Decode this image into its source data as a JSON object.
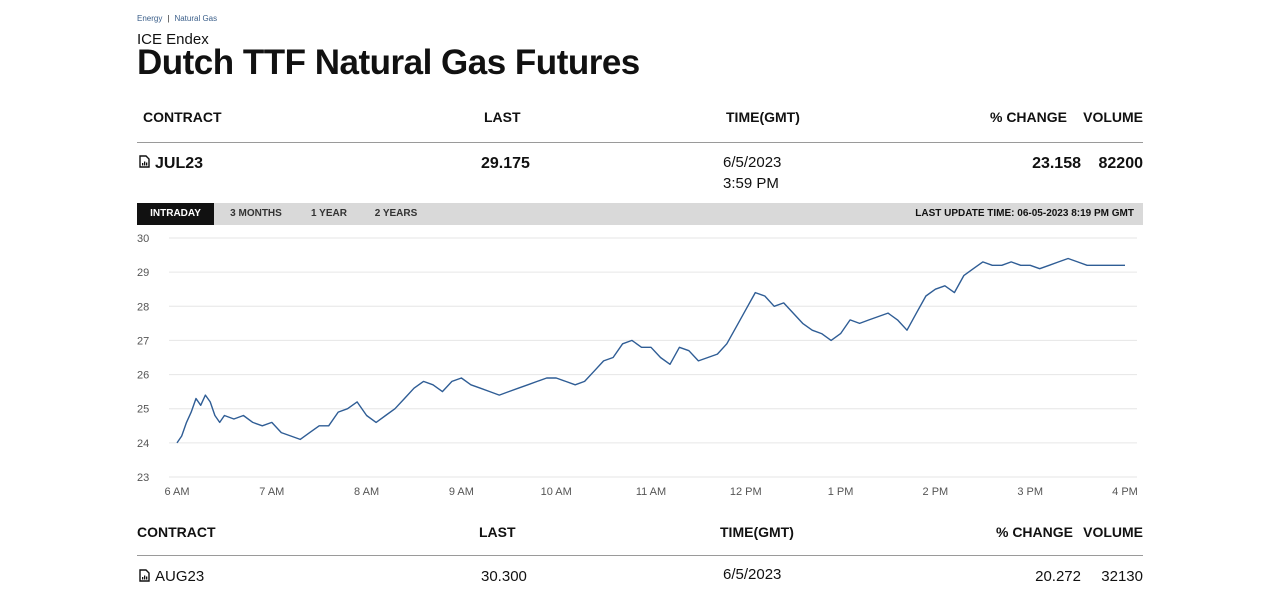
{
  "breadcrumb": {
    "items": [
      "Energy",
      "Natural Gas"
    ],
    "separator": "|"
  },
  "exchange": "ICE Endex",
  "title": "Dutch TTF Natural Gas Futures",
  "table_headers": {
    "contract": "CONTRACT",
    "last": "LAST",
    "time": "TIME(GMT)",
    "change": "% CHANGE",
    "volume": "VOLUME"
  },
  "main_row": {
    "contract": "JUL23",
    "last": "29.175",
    "date": "6/5/2023",
    "time": "3:59 PM",
    "change": "23.158",
    "volume": "82200",
    "icon": "document-chart-icon"
  },
  "tabs": [
    {
      "label": "INTRADAY",
      "active": true
    },
    {
      "label": "3 MONTHS",
      "active": false
    },
    {
      "label": "1 YEAR",
      "active": false
    },
    {
      "label": "2 YEARS",
      "active": false
    }
  ],
  "last_update": "LAST UPDATE TIME: 06-05-2023 8:19 PM GMT",
  "second_row": {
    "contract": "AUG23",
    "last": "30.300",
    "date": "6/5/2023",
    "change": "20.272",
    "volume": "32130",
    "icon": "document-chart-icon"
  },
  "colors": {
    "line": "#2f5d95",
    "gridline": "#e6e6e6",
    "tab_active_bg": "#111111",
    "tab_bar_bg": "#d9d9d9",
    "breadcrumb": "#3b5f8a"
  },
  "chart_data": {
    "type": "line",
    "ylim": [
      23,
      30
    ],
    "y_ticks": [
      "30",
      "29",
      "28",
      "27",
      "26",
      "25",
      "24",
      "23"
    ],
    "x_ticks": [
      "6 AM",
      "7 AM",
      "8 AM",
      "9 AM",
      "10 AM",
      "11 AM",
      "12 PM",
      "1 PM",
      "2 PM",
      "3 PM",
      "4 PM"
    ],
    "grid": true,
    "series": [
      {
        "x": [
          6.0,
          6.05,
          6.1,
          6.15,
          6.2,
          6.25,
          6.3,
          6.35,
          6.4,
          6.45,
          6.5,
          6.6,
          6.7,
          6.8,
          6.9,
          7.0,
          7.1,
          7.2,
          7.3,
          7.4,
          7.5,
          7.6,
          7.7,
          7.8,
          7.9,
          8.0,
          8.1,
          8.2,
          8.3,
          8.4,
          8.5,
          8.6,
          8.7,
          8.8,
          8.9,
          9.0,
          9.1,
          9.2,
          9.3,
          9.4,
          9.5,
          9.6,
          9.7,
          9.8,
          9.9,
          10.0,
          10.1,
          10.2,
          10.3,
          10.4,
          10.5,
          10.6,
          10.7,
          10.8,
          10.9,
          11.0,
          11.1,
          11.2,
          11.3,
          11.4,
          11.5,
          11.6,
          11.7,
          11.8,
          11.9,
          12.0,
          12.1,
          12.2,
          12.3,
          12.4,
          12.5,
          12.6,
          12.7,
          12.8,
          12.9,
          13.0,
          13.1,
          13.2,
          13.3,
          13.4,
          13.5,
          13.6,
          13.7,
          13.8,
          13.9,
          14.0,
          14.1,
          14.2,
          14.3,
          14.4,
          14.5,
          14.6,
          14.7,
          14.8,
          14.9,
          15.0,
          15.1,
          15.2,
          15.3,
          15.4,
          15.5,
          15.6,
          15.7,
          15.8,
          15.9,
          16.0
        ],
        "y": [
          24.0,
          24.2,
          24.6,
          24.9,
          25.3,
          25.1,
          25.4,
          25.2,
          24.8,
          24.6,
          24.8,
          24.7,
          24.8,
          24.6,
          24.5,
          24.6,
          24.3,
          24.2,
          24.1,
          24.3,
          24.5,
          24.5,
          24.9,
          25.0,
          25.2,
          24.8,
          24.6,
          24.8,
          25.0,
          25.3,
          25.6,
          25.8,
          25.7,
          25.5,
          25.8,
          25.9,
          25.7,
          25.6,
          25.5,
          25.4,
          25.5,
          25.6,
          25.7,
          25.8,
          25.9,
          25.9,
          25.8,
          25.7,
          25.8,
          26.1,
          26.4,
          26.5,
          26.9,
          27.0,
          26.8,
          26.8,
          26.5,
          26.3,
          26.8,
          26.7,
          26.4,
          26.5,
          26.6,
          26.9,
          27.4,
          27.9,
          28.4,
          28.3,
          28.0,
          28.1,
          27.8,
          27.5,
          27.3,
          27.2,
          27.0,
          27.2,
          27.6,
          27.5,
          27.6,
          27.7,
          27.8,
          27.6,
          27.3,
          27.8,
          28.3,
          28.5,
          28.6,
          28.4,
          28.9,
          29.1,
          29.3,
          29.2,
          29.2,
          29.3,
          29.2,
          29.2,
          29.1,
          29.2,
          29.3,
          29.4,
          29.3,
          29.2,
          29.2,
          29.2,
          29.2,
          29.2
        ]
      }
    ]
  }
}
